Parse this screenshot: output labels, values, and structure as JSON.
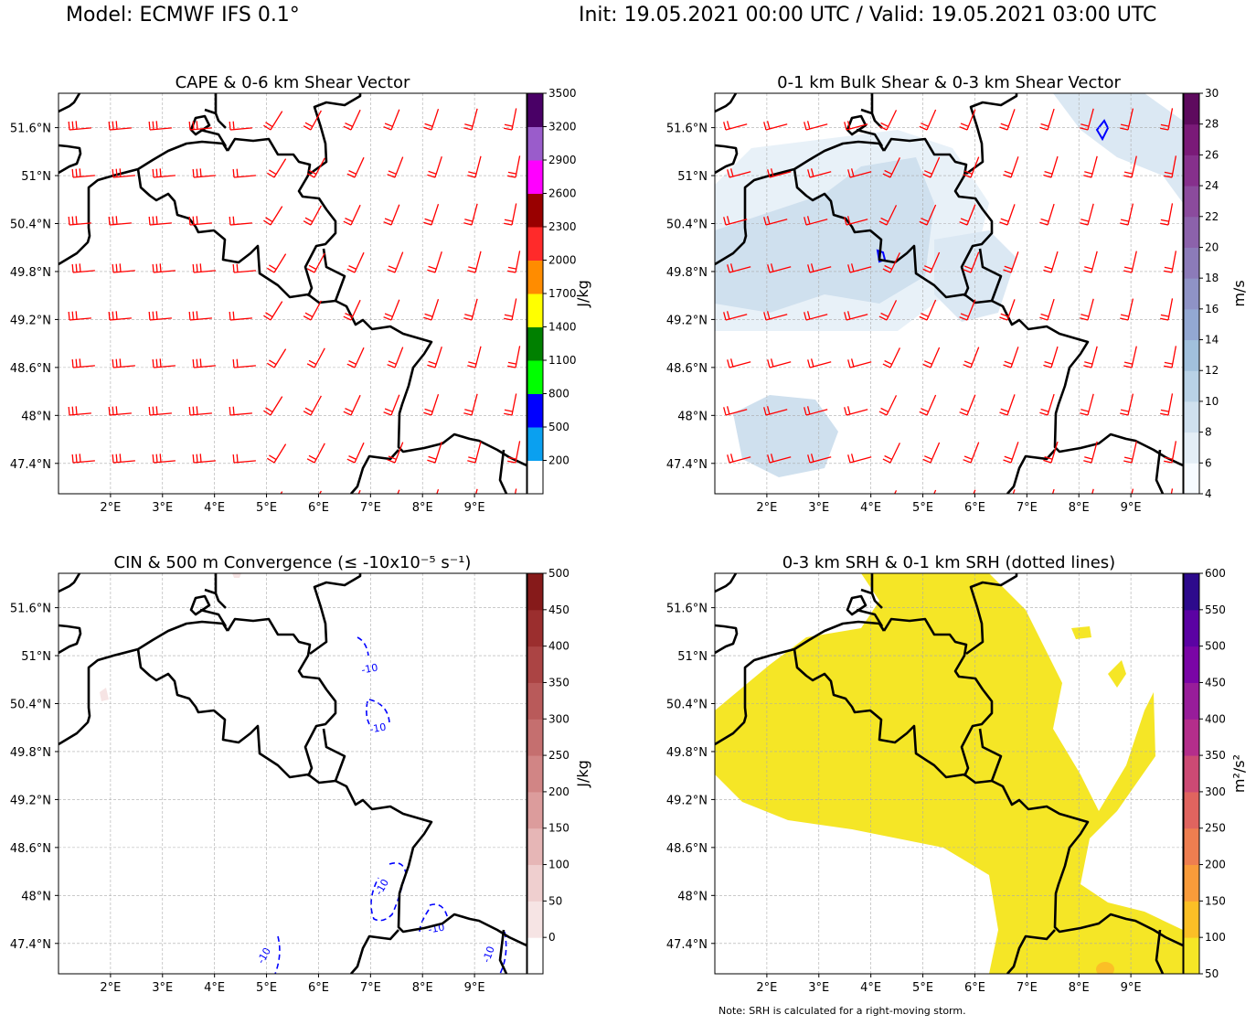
{
  "header": {
    "model": "Model: ECMWF IFS 0.1°",
    "time": "Init: 19.05.2021 00:00 UTC / Valid: 19.05.2021 03:00 UTC"
  },
  "note": "Note: SRH is calculated for a right-moving storm.",
  "axes": {
    "lon_range": [
      1.0,
      10.0
    ],
    "lat_range": [
      47.02,
      52.03
    ],
    "lon_ticks": [
      2,
      3,
      4,
      5,
      6,
      7,
      8,
      9
    ],
    "lon_labels": [
      "2°E",
      "3°E",
      "4°E",
      "5°E",
      "6°E",
      "7°E",
      "8°E",
      "9°E"
    ],
    "lat_ticks": [
      47.4,
      48.0,
      48.6,
      49.2,
      49.8,
      50.4,
      51.0,
      51.6
    ],
    "lat_labels": [
      "47.4°N",
      "48°N",
      "48.6°N",
      "49.2°N",
      "49.8°N",
      "50.4°N",
      "51°N",
      "51.6°N"
    ]
  },
  "chart_data": [
    {
      "type": "heatmap",
      "title": "CAPE & 0-6 km Shear Vector",
      "units": "J/kg",
      "levels": [
        -100,
        200,
        500,
        800,
        1100,
        1400,
        1700,
        2000,
        2300,
        2600,
        2900,
        3200,
        3500
      ],
      "tick_labels": [
        "200",
        "500",
        "800",
        "1100",
        "1400",
        "1700",
        "2000",
        "2300",
        "2600",
        "2900",
        "3200",
        "3500"
      ],
      "colors": [
        "#ffffff",
        "#0aa0f0",
        "#0000ff",
        "#00ff00",
        "#008000",
        "#ffff00",
        "#ff8c00",
        "#ff2a2a",
        "#990000",
        "#ff00ff",
        "#9a5ccb",
        "#490066"
      ],
      "barb_color": "#ff0000",
      "barbs": true
    },
    {
      "type": "heatmap",
      "title": "0-1 km Bulk Shear & 0-3 km Shear Vector",
      "units": "m/s",
      "levels": [
        4,
        6,
        8,
        10,
        12,
        14,
        16,
        18,
        20,
        22,
        24,
        26,
        28,
        30
      ],
      "tick_labels": [
        "4",
        "6",
        "8",
        "10",
        "12",
        "14",
        "16",
        "18",
        "20",
        "22",
        "24",
        "26",
        "28",
        "30"
      ],
      "colors": [
        "#f7fbff",
        "#e4eef6",
        "#cfe0ee",
        "#b9d2e6",
        "#a1c0dc",
        "#93a8d2",
        "#8f93c6",
        "#8c7bb9",
        "#8c62ab",
        "#8b4b9d",
        "#86308c",
        "#7a1a78",
        "#5e0a5e"
      ],
      "barb_color": "#ff0000",
      "barbs": true
    },
    {
      "type": "heatmap",
      "title": "CIN & 500 m Convergence (≤ -10x10⁻⁵ s⁻¹)",
      "units": "J/kg",
      "levels": [
        -50,
        0,
        50,
        100,
        150,
        200,
        250,
        300,
        350,
        400,
        450,
        500
      ],
      "tick_labels": [
        "0",
        "50",
        "100",
        "150",
        "200",
        "250",
        "300",
        "350",
        "400",
        "450",
        "500"
      ],
      "colors": [
        "#ffffff",
        "#f6e4e4",
        "#efcfcf",
        "#e6b6b6",
        "#dc9c9c",
        "#d18585",
        "#c56f6f",
        "#b95a5a",
        "#ab4444",
        "#9b2e2e",
        "#861a1a",
        "#690808"
      ],
      "contour_labels": [
        "-10",
        "-10",
        "-10",
        "-10",
        "-10",
        "-10"
      ],
      "barbs": false
    },
    {
      "type": "heatmap",
      "title": "0-3 km SRH & 0-1 km SRH (dotted lines)",
      "units": "m²/s²",
      "levels": [
        50,
        100,
        150,
        200,
        250,
        300,
        350,
        400,
        450,
        500,
        550,
        600
      ],
      "tick_labels": [
        "50",
        "100",
        "150",
        "200",
        "250",
        "300",
        "350",
        "400",
        "450",
        "500",
        "550",
        "600"
      ],
      "colors": [
        "#f5e626",
        "#fbbf26",
        "#f99b3a",
        "#ee7e50",
        "#e0645f",
        "#cc4a74",
        "#b42e8b",
        "#981d9a",
        "#7a05a6",
        "#5b02a3",
        "#2d0a8c"
      ],
      "barbs": false
    }
  ]
}
